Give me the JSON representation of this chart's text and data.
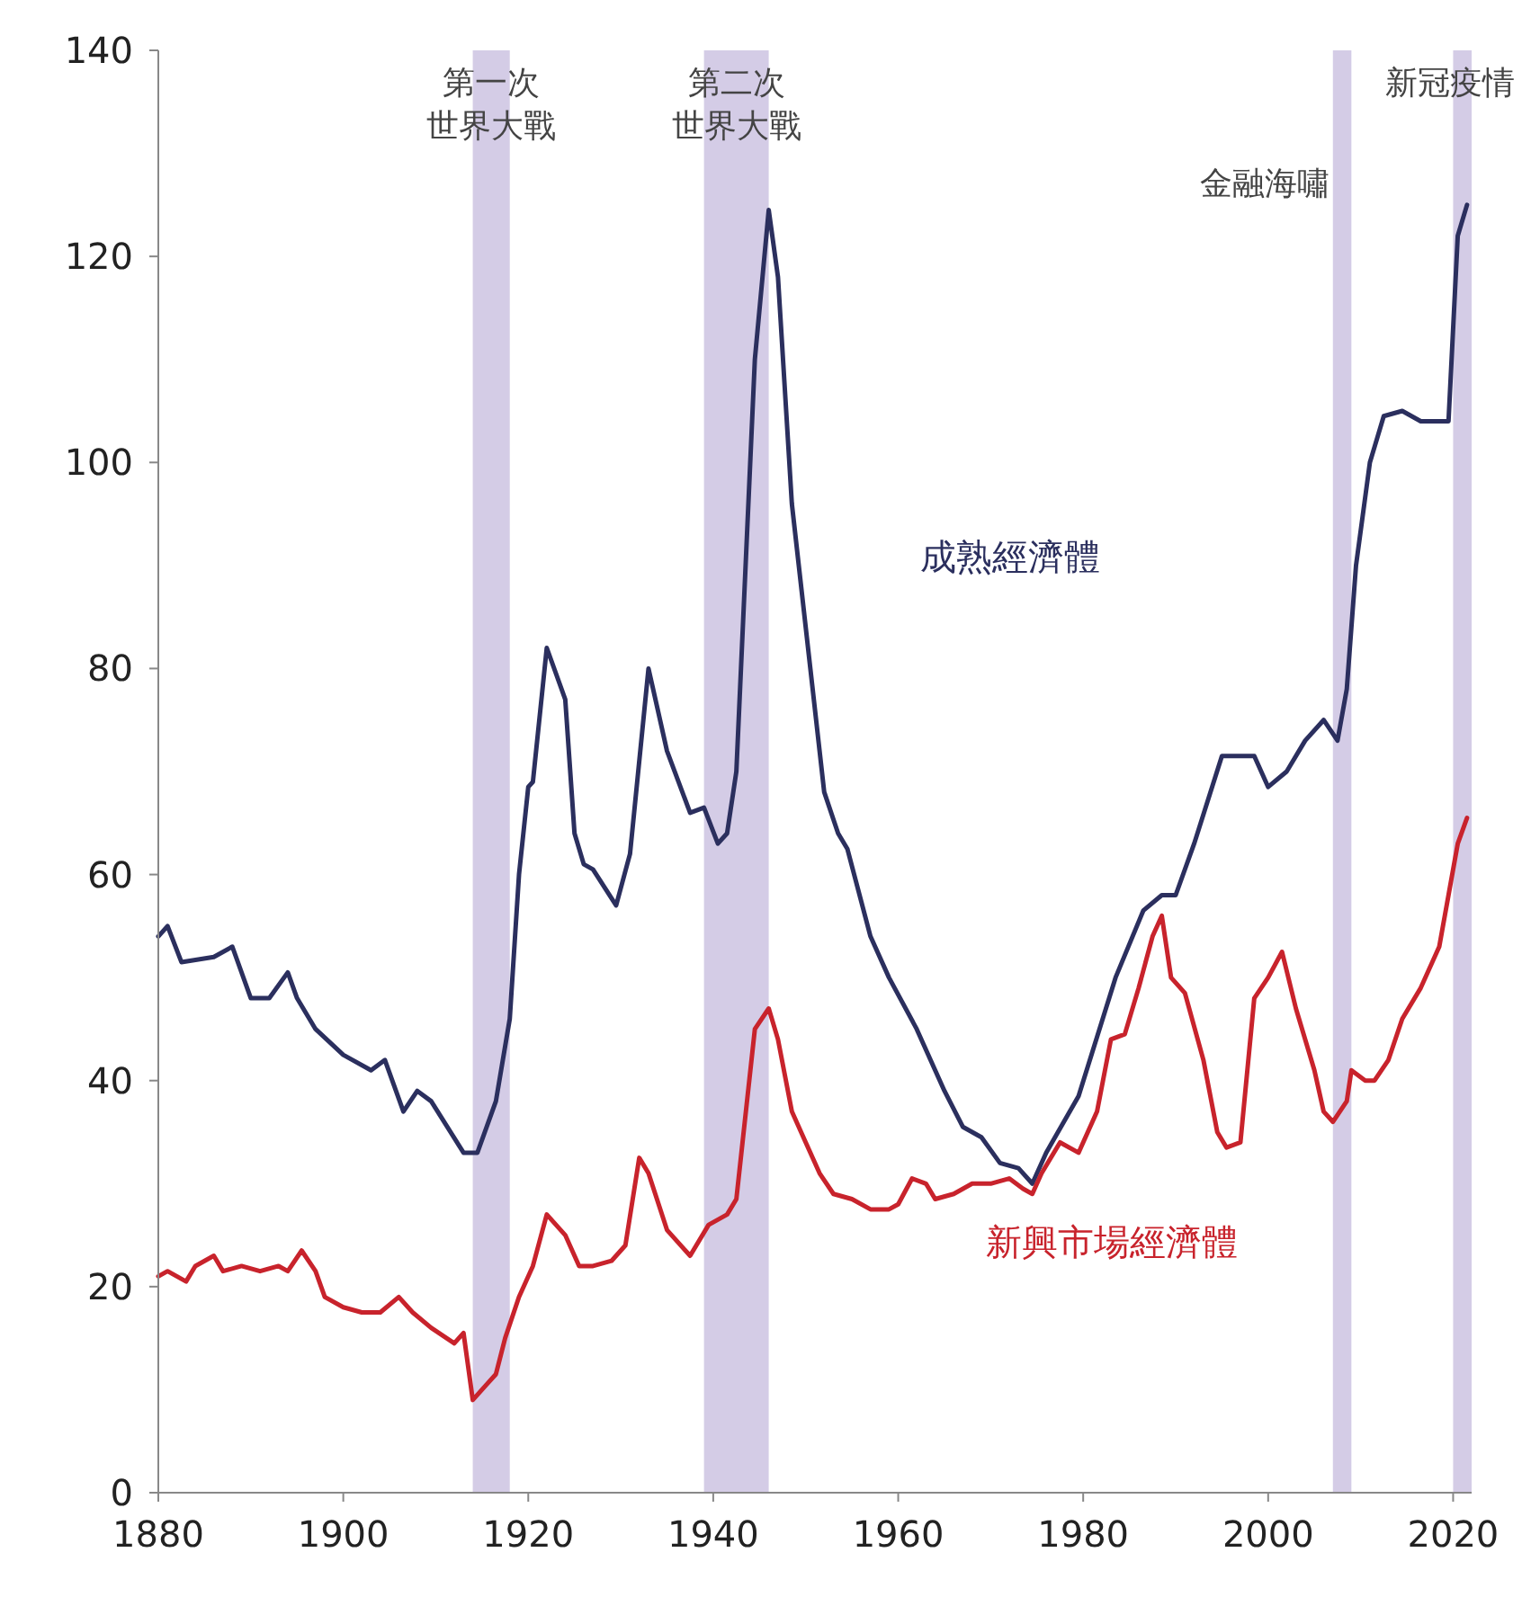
{
  "chart_data": {
    "type": "line",
    "xlim": [
      1880,
      2022
    ],
    "xticks": [
      1880,
      1900,
      1920,
      1940,
      1960,
      1980,
      2000,
      2020
    ],
    "ylim": [
      0,
      140
    ],
    "yticks": [
      0,
      20,
      40,
      60,
      80,
      100,
      120,
      140
    ],
    "grid": false,
    "legend": false,
    "marker": "none",
    "line_style": "solid",
    "series": [
      {
        "name": "成熟經濟體",
        "color": "#2b2f5e",
        "x": [
          1880,
          1881,
          1882.5,
          1886,
          1888,
          1890,
          1892,
          1894,
          1895,
          1897,
          1900,
          1903,
          1904.5,
          1906.5,
          1908,
          1909.5,
          1913,
          1914.5,
          1916.5,
          1918,
          1919,
          1920,
          1920.5,
          1922,
          1924,
          1925,
          1926,
          1927,
          1929.5,
          1931,
          1933,
          1935,
          1937.5,
          1939,
          1940.5,
          1941.5,
          1942.5,
          1944.5,
          1946,
          1947,
          1948.5,
          1950.5,
          1952,
          1953.5,
          1954.5,
          1957,
          1959,
          1962,
          1965,
          1967,
          1969,
          1971,
          1973,
          1974.5,
          1976,
          1979.5,
          1983.5,
          1986.5,
          1988.5,
          1990,
          1992,
          1995,
          1998.5,
          2000,
          2002,
          2004,
          2006,
          2007.5,
          2008.5,
          2009.5,
          2011,
          2012.5,
          2014.5,
          2016.5,
          2018.5,
          2019.5,
          2020.5,
          2021.5
        ],
        "values": [
          54,
          55,
          51.5,
          52,
          53,
          48,
          48,
          50.5,
          48,
          45,
          42.5,
          41,
          42,
          37,
          39,
          38,
          33,
          33,
          38,
          46,
          60,
          68.5,
          69,
          82,
          77,
          64,
          61,
          60.5,
          57,
          62,
          80,
          72,
          66,
          66.5,
          63,
          64,
          70,
          110,
          124.5,
          118,
          96,
          80,
          68,
          64,
          62.5,
          54,
          50,
          45,
          39,
          35.5,
          34.5,
          32,
          31.5,
          30,
          33,
          38.5,
          50,
          56.5,
          58,
          58,
          63,
          71.5,
          71.5,
          68.5,
          70,
          73,
          75,
          73,
          78,
          90,
          100,
          104.5,
          105,
          104,
          104,
          104,
          122,
          125
        ]
      },
      {
        "name": "新興市場經濟體",
        "color": "#c8232c",
        "x": [
          1880,
          1881,
          1883,
          1884,
          1886,
          1887,
          1889,
          1891,
          1893,
          1894,
          1895.5,
          1897,
          1898,
          1900,
          1902,
          1904,
          1906,
          1907.5,
          1909.5,
          1912,
          1913,
          1914,
          1915.5,
          1916.5,
          1917.5,
          1919,
          1920.5,
          1922,
          1924,
          1925.5,
          1927,
          1929,
          1930.5,
          1932,
          1933,
          1935,
          1937.5,
          1939.5,
          1941.5,
          1942.5,
          1944.5,
          1946,
          1947,
          1948.5,
          1950,
          1951.5,
          1953,
          1955,
          1957,
          1959,
          1960,
          1961.5,
          1963,
          1964,
          1966,
          1968,
          1970,
          1972,
          1973.5,
          1974.5,
          1975.5,
          1977.5,
          1979.5,
          1981.5,
          1983,
          1984.5,
          1986,
          1987.5,
          1988.5,
          1989.5,
          1991,
          1993,
          1994.5,
          1995.5,
          1997,
          1998.5,
          2000,
          2001.5,
          2003,
          2005,
          2006,
          2007,
          2008.5,
          2009,
          2010.5,
          2011.5,
          2013,
          2014.5,
          2016.5,
          2018.5,
          2019.5,
          2020.5,
          2021.5
        ],
        "values": [
          21,
          21.5,
          20.5,
          22,
          23,
          21.5,
          22,
          21.5,
          22,
          21.5,
          23.5,
          21.5,
          19,
          18,
          17.5,
          17.5,
          19,
          17.5,
          16,
          14.5,
          15.5,
          9,
          10.5,
          11.5,
          15,
          19,
          22,
          27,
          25,
          22,
          22,
          22.5,
          24,
          32.5,
          31,
          25.5,
          23,
          26,
          27,
          28.5,
          45,
          47,
          44,
          37,
          34,
          31,
          29,
          28.5,
          27.5,
          27.5,
          28,
          30.5,
          30,
          28.5,
          29,
          30,
          30,
          30.5,
          29.5,
          29,
          31,
          34,
          33,
          37,
          44,
          44.5,
          49,
          54,
          56,
          50,
          48.5,
          42,
          35,
          33.5,
          34,
          48,
          50,
          52.5,
          47,
          41,
          37,
          36,
          38,
          41,
          40,
          40,
          42,
          46,
          49,
          53,
          58,
          63,
          65.5
        ]
      }
    ],
    "bands": [
      {
        "axis": "x",
        "from": 1914,
        "to": 1918,
        "label": "第一次世界大戰",
        "color": "#d4cce6"
      },
      {
        "axis": "x",
        "from": 1939,
        "to": 1946,
        "label": "第二次世界大戰",
        "color": "#d4cce6"
      },
      {
        "axis": "x",
        "from": 2007,
        "to": 2009,
        "label": "金融海嘯",
        "color": "#d4cce6"
      },
      {
        "axis": "x",
        "from": 2020,
        "to": 2022,
        "label": "新冠疫情",
        "color": "#d4cce6"
      }
    ]
  }
}
